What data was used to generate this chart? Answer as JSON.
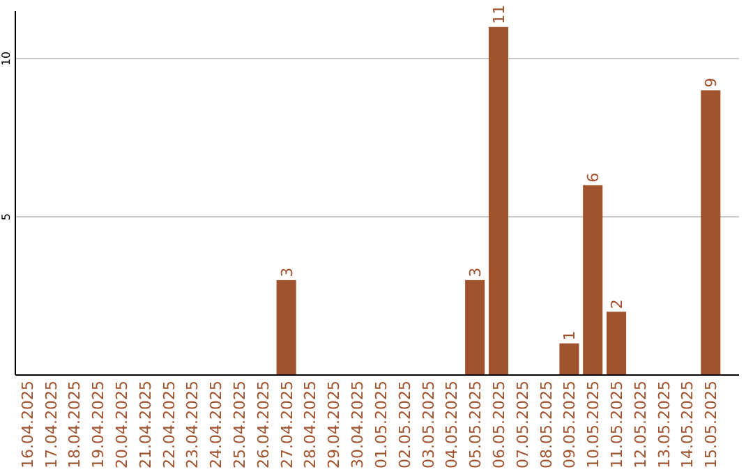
{
  "chart_data": {
    "type": "bar",
    "categories": [
      "16.04.2025",
      "17.04.2025",
      "18.04.2025",
      "19.04.2025",
      "20.04.2025",
      "21.04.2025",
      "22.04.2025",
      "23.04.2025",
      "24.04.2025",
      "25.04.2025",
      "26.04.2025",
      "27.04.2025",
      "28.04.2025",
      "29.04.2025",
      "30.04.2025",
      "01.05.2025",
      "02.05.2025",
      "03.05.2025",
      "04.05.2025",
      "05.05.2025",
      "06.05.2025",
      "07.05.2025",
      "08.05.2025",
      "09.05.2025",
      "10.05.2025",
      "11.05.2025",
      "12.05.2025",
      "13.05.2025",
      "14.05.2025",
      "15.05.2025"
    ],
    "values": [
      0,
      0,
      0,
      0,
      0,
      0,
      0,
      0,
      0,
      0,
      0,
      3,
      0,
      0,
      0,
      0,
      0,
      0,
      0,
      3,
      11,
      0,
      0,
      1,
      6,
      2,
      0,
      0,
      0,
      9
    ],
    "value_labels": [
      null,
      null,
      null,
      null,
      null,
      null,
      null,
      null,
      null,
      null,
      null,
      "3",
      null,
      null,
      null,
      null,
      null,
      null,
      null,
      "3",
      "11",
      null,
      null,
      "1",
      "6",
      "2",
      null,
      null,
      null,
      "9"
    ],
    "color": "#a0522d",
    "ylim": [
      0,
      11.5
    ],
    "yticks": [
      5,
      10
    ],
    "grid": "y"
  }
}
